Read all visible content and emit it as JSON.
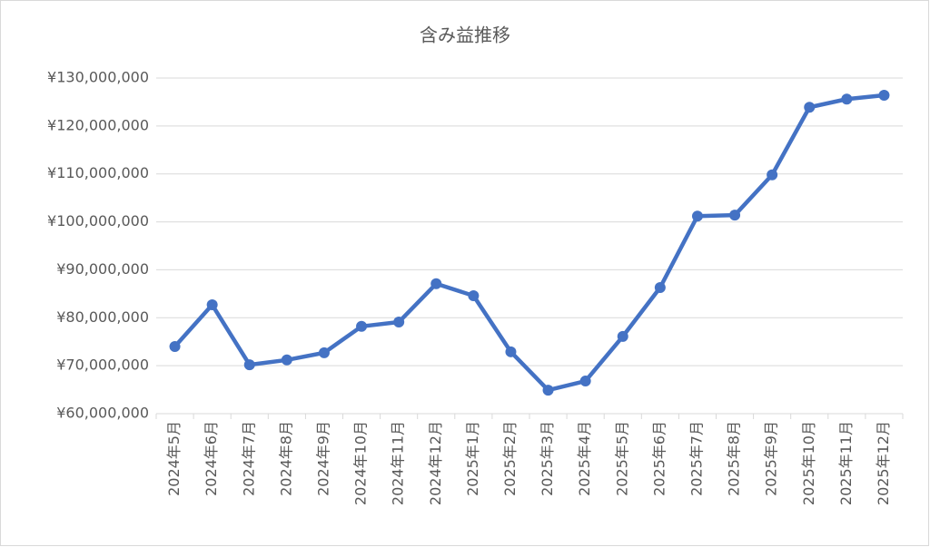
{
  "chart_data": {
    "type": "line",
    "title": "含み益推移",
    "categories": [
      "2024年5月",
      "2024年6月",
      "2024年7月",
      "2024年8月",
      "2024年9月",
      "2024年10月",
      "2024年11月",
      "2024年12月",
      "2025年1月",
      "2025年2月",
      "2025年3月",
      "2025年4月",
      "2025年5月",
      "2025年6月",
      "2025年7月",
      "2025年8月",
      "2025年9月",
      "2025年10月",
      "2025年11月",
      "2025年12月"
    ],
    "values": [
      74000000,
      82700000,
      70200000,
      71200000,
      72700000,
      78200000,
      79100000,
      87100000,
      84600000,
      72900000,
      64900000,
      66800000,
      76100000,
      86300000,
      101200000,
      101400000,
      109800000,
      123900000,
      125600000,
      126400000
    ],
    "color": "#4472c4",
    "ylim": [
      60000000,
      130000000
    ],
    "yticks": [
      {
        "value": 60000000,
        "label": "¥60,000,000"
      },
      {
        "value": 70000000,
        "label": "¥70,000,000"
      },
      {
        "value": 80000000,
        "label": "¥80,000,000"
      },
      {
        "value": 90000000,
        "label": "¥90,000,000"
      },
      {
        "value": 100000000,
        "label": "¥100,000,000"
      },
      {
        "value": 110000000,
        "label": "¥110,000,000"
      },
      {
        "value": 120000000,
        "label": "¥120,000,000"
      },
      {
        "value": 130000000,
        "label": "¥130,000,000"
      }
    ],
    "grid": true
  }
}
